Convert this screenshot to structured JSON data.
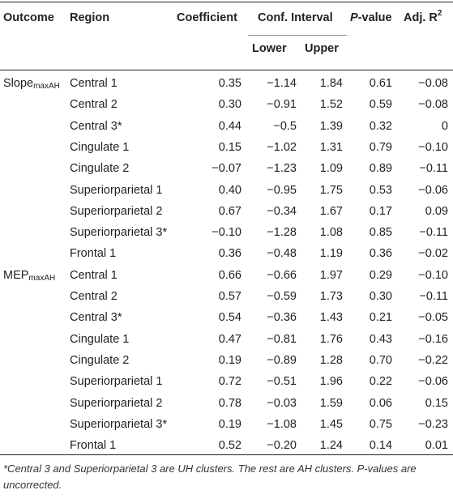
{
  "header": {
    "outcome": "Outcome",
    "region": "Region",
    "coefficient": "Coefficient",
    "ci": "Conf. Interval",
    "lower": "Lower",
    "upper": "Upper",
    "pvalue_italic": "P",
    "pvalue_rest": "-value",
    "adj_r": "Adj. R",
    "adj_sup": "2"
  },
  "outcomes": [
    {
      "base": "Slope",
      "sub": "maxAH"
    },
    {
      "base": "MEP",
      "sub": "maxAH"
    }
  ],
  "rows": [
    {
      "region": "Central 1",
      "coef": "0.35",
      "lower": "−1.14",
      "upper": "1.84",
      "p": "0.61",
      "adj": "−0.08"
    },
    {
      "region": "Central 2",
      "coef": "0.30",
      "lower": "−0.91",
      "upper": "1.52",
      "p": "0.59",
      "adj": "−0.08"
    },
    {
      "region": "Central 3*",
      "coef": "0.44",
      "lower": "−0.5",
      "upper": "1.39",
      "p": "0.32",
      "adj": "0"
    },
    {
      "region": "Cingulate 1",
      "coef": "0.15",
      "lower": "−1.02",
      "upper": "1.31",
      "p": "0.79",
      "adj": "−0.10"
    },
    {
      "region": "Cingulate 2",
      "coef": "−0.07",
      "lower": "−1.23",
      "upper": "1.09",
      "p": "0.89",
      "adj": "−0.11"
    },
    {
      "region": "Superiorparietal 1",
      "coef": "0.40",
      "lower": "−0.95",
      "upper": "1.75",
      "p": "0.53",
      "adj": "−0.06"
    },
    {
      "region": "Superiorparietal 2",
      "coef": "0.67",
      "lower": "−0.34",
      "upper": "1.67",
      "p": "0.17",
      "adj": "0.09"
    },
    {
      "region": "Superiorparietal 3*",
      "coef": "−0.10",
      "lower": "−1.28",
      "upper": "1.08",
      "p": "0.85",
      "adj": "−0.11"
    },
    {
      "region": "Frontal 1",
      "coef": "0.36",
      "lower": "−0.48",
      "upper": "1.19",
      "p": "0.36",
      "adj": "−0.02"
    },
    {
      "region": "Central 1",
      "coef": "0.66",
      "lower": "−0.66",
      "upper": "1.97",
      "p": "0.29",
      "adj": "−0.10"
    },
    {
      "region": "Central 2",
      "coef": "0.57",
      "lower": "−0.59",
      "upper": "1.73",
      "p": "0.30",
      "adj": "−0.11"
    },
    {
      "region": "Central 3*",
      "coef": "0.54",
      "lower": "−0.36",
      "upper": "1.43",
      "p": "0.21",
      "adj": "−0.05"
    },
    {
      "region": "Cingulate 1",
      "coef": "0.47",
      "lower": "−0.81",
      "upper": "1.76",
      "p": "0.43",
      "adj": "−0.16"
    },
    {
      "region": "Cingulate 2",
      "coef": "0.19",
      "lower": "−0.89",
      "upper": "1.28",
      "p": "0.70",
      "adj": "−0.22"
    },
    {
      "region": "Superiorparietal 1",
      "coef": "0.72",
      "lower": "−0.51",
      "upper": "1.96",
      "p": "0.22",
      "adj": "−0.06"
    },
    {
      "region": "Superiorparietal 2",
      "coef": "0.78",
      "lower": "−0.03",
      "upper": "1.59",
      "p": "0.06",
      "adj": "0.15"
    },
    {
      "region": "Superiorparietal 3*",
      "coef": "0.19",
      "lower": "−1.08",
      "upper": "1.45",
      "p": "0.75",
      "adj": "−0.23"
    },
    {
      "region": "Frontal 1",
      "coef": "0.52",
      "lower": "−0.20",
      "upper": "1.24",
      "p": "0.14",
      "adj": "0.01"
    }
  ],
  "footnote": "*Central 3 and Superiorparietal 3 are UH clusters. The rest are AH clusters. P-values are uncorrected."
}
